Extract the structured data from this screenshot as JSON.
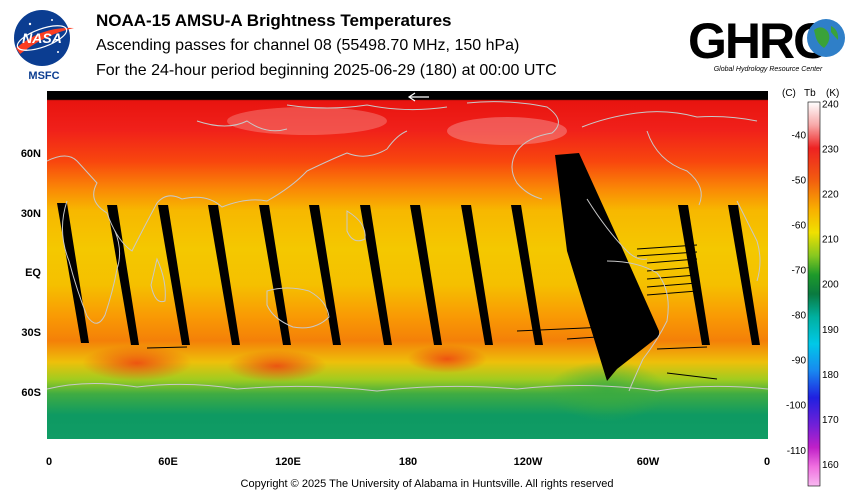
{
  "header": {
    "title": "NOAA-15 AMSU-A Brightness Temperatures",
    "subtitle": "Ascending passes for channel 08 (55498.70 MHz, 150 hPa)",
    "period": "For the 24-hour period beginning 2025-06-29 (180) at 00:00 UTC"
  },
  "logos": {
    "nasa_text": "NASA",
    "nasa_sub": "MSFC",
    "ghrc_text": "GHRC",
    "ghrc_sub": "Global Hydrology Resource Center"
  },
  "map": {
    "lat_labels": [
      "60N",
      "30N",
      "EQ",
      "30S",
      "60S"
    ],
    "lon_labels": [
      "0",
      "60E",
      "120E",
      "180",
      "120W",
      "60W",
      "0"
    ],
    "colors": {
      "polar_north": "#ee1a10",
      "mid_lat": "#f86a0a",
      "tropics": "#f4c400",
      "south_mid": "#f07a08",
      "south_polar_band": "#58b838",
      "antarctic": "#0e9a62",
      "no_data": "#000000",
      "coastline": "#c8c8c8"
    }
  },
  "colorbar": {
    "header_c": "(C)",
    "header_tb": "Tb",
    "header_k": "(K)",
    "celsius_ticks": [
      "-40",
      "-50",
      "-60",
      "-70",
      "-80",
      "-90",
      "-100",
      "-110"
    ],
    "kelvin_ticks": [
      "240",
      "230",
      "220",
      "210",
      "200",
      "190",
      "180",
      "170",
      "160"
    ],
    "range_k": [
      157,
      240
    ]
  },
  "footer": {
    "copyright": "Copyright © 2025 The University of Alabama in Huntsville.  All rights reserved"
  }
}
